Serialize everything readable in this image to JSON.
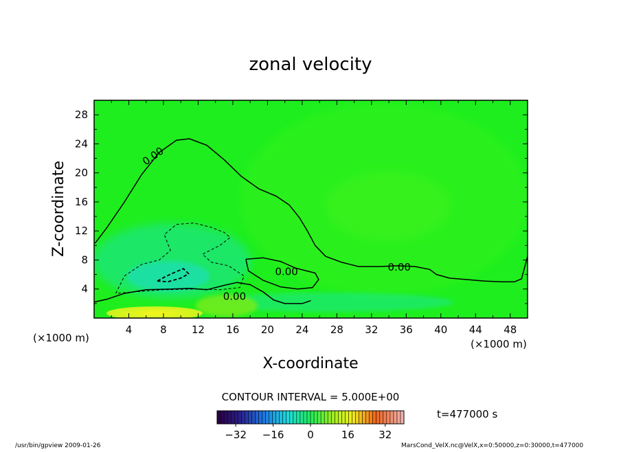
{
  "chart_data": {
    "type": "heatmap",
    "title": "zonal velocity",
    "xlabel": "X-coordinate",
    "ylabel": "Z-coordinate",
    "x_unit": "(×1000 m)",
    "y_unit": "(×1000 m)",
    "xlim": [
      0,
      50
    ],
    "ylim": [
      0,
      30
    ],
    "x_ticks": [
      4,
      8,
      12,
      16,
      20,
      24,
      28,
      32,
      36,
      40,
      44,
      48
    ],
    "y_ticks": [
      4,
      8,
      12,
      16,
      20,
      24,
      28
    ],
    "contour_labels": [
      {
        "text": "0.00",
        "x": 6.8,
        "y": 22.3,
        "angle": -35
      },
      {
        "text": "0.00",
        "x": 22.2,
        "y": 6.4,
        "angle": 0
      },
      {
        "text": "0.00",
        "x": 35.2,
        "y": 7.0,
        "angle": 0
      },
      {
        "text": "0.00",
        "x": 16.2,
        "y": 3.0,
        "angle": 0
      }
    ],
    "contour_zero": [
      [
        0.1,
        10.3
      ],
      [
        1.5,
        12.5
      ],
      [
        3.5,
        16.0
      ],
      [
        5.5,
        19.8
      ],
      [
        7.5,
        22.8
      ],
      [
        9.5,
        24.5
      ],
      [
        11,
        24.7
      ],
      [
        13,
        23.8
      ],
      [
        15,
        21.8
      ],
      [
        17,
        19.5
      ],
      [
        19,
        17.8
      ],
      [
        21,
        16.8
      ],
      [
        22.5,
        15.6
      ],
      [
        23.7,
        13.8
      ],
      [
        24.6,
        12.0
      ],
      [
        25.5,
        10.0
      ],
      [
        26.7,
        8.5
      ],
      [
        28.5,
        7.7
      ],
      [
        30.5,
        7.1
      ],
      [
        33,
        7.1
      ],
      [
        35,
        7.2
      ],
      [
        37,
        7.1
      ],
      [
        38.7,
        6.7
      ],
      [
        39.5,
        6.0
      ],
      [
        41,
        5.5
      ],
      [
        43,
        5.3
      ],
      [
        45,
        5.1
      ],
      [
        47,
        5.0
      ],
      [
        48.5,
        5.0
      ],
      [
        49.3,
        5.4
      ],
      [
        50,
        8.5
      ]
    ],
    "contour_lower": [
      [
        0,
        2.2
      ],
      [
        1.5,
        2.6
      ],
      [
        3.5,
        3.4
      ],
      [
        6,
        3.9
      ],
      [
        9,
        4.0
      ],
      [
        11,
        4.1
      ],
      [
        13,
        3.9
      ],
      [
        15,
        4.5
      ],
      [
        16.5,
        4.9
      ],
      [
        18,
        4.6
      ],
      [
        19.5,
        3.6
      ],
      [
        20.7,
        2.5
      ],
      [
        22,
        2.0
      ],
      [
        24,
        2.0
      ],
      [
        25,
        2.4
      ]
    ],
    "contour_inner": [
      [
        17.5,
        8.1
      ],
      [
        19.5,
        8.3
      ],
      [
        21.5,
        7.8
      ],
      [
        23.2,
        6.9
      ],
      [
        25.5,
        6.2
      ],
      [
        25.9,
        5.3
      ],
      [
        25.2,
        4.2
      ],
      [
        23.5,
        4.0
      ],
      [
        21.5,
        4.3
      ],
      [
        19.5,
        5.2
      ],
      [
        17.8,
        6.5
      ],
      [
        17.5,
        8.1
      ]
    ],
    "contour_neg_outer": [
      [
        2.5,
        3.4
      ],
      [
        3.5,
        5.8
      ],
      [
        5.5,
        7.4
      ],
      [
        7.5,
        8.0
      ],
      [
        8.8,
        9.3
      ],
      [
        8.1,
        11.5
      ],
      [
        9.5,
        12.9
      ],
      [
        11.5,
        13.1
      ],
      [
        13.5,
        12.5
      ],
      [
        15,
        11.8
      ],
      [
        15.7,
        11.1
      ],
      [
        14.5,
        10.0
      ],
      [
        12.5,
        8.8
      ],
      [
        13.5,
        7.7
      ],
      [
        15.5,
        7.2
      ],
      [
        17.3,
        5.8
      ],
      [
        16.8,
        4.2
      ],
      [
        14.5,
        3.9
      ],
      [
        12,
        4.0
      ],
      [
        8,
        3.9
      ],
      [
        4.5,
        3.6
      ],
      [
        2.5,
        3.4
      ]
    ],
    "contour_neg_inner": [
      [
        7.3,
        5.1
      ],
      [
        8.2,
        5.7
      ],
      [
        9.3,
        6.3
      ],
      [
        10.3,
        6.8
      ],
      [
        10.9,
        6.1
      ],
      [
        10.0,
        5.5
      ],
      [
        8.5,
        5.0
      ],
      [
        7.3,
        5.1
      ]
    ],
    "colorbar": {
      "ticks": [
        -32,
        -16,
        0,
        16,
        32
      ],
      "min": -40,
      "max": 40,
      "contour_interval_text": "CONTOUR INTERVAL = 5.000E+00"
    }
  },
  "time_label": "t=477000 s",
  "footer_left": "/usr/bin/gpview   2009-01-26",
  "footer_right": "MarsCond_VelX.nc@VelX,x=0:50000,z=0:30000,t=477000",
  "colors": {
    "field_main": "#1eee1e",
    "field_mid": "#2ff21e",
    "cyan": "#1ee49a",
    "yellow": "#ecf21e"
  }
}
